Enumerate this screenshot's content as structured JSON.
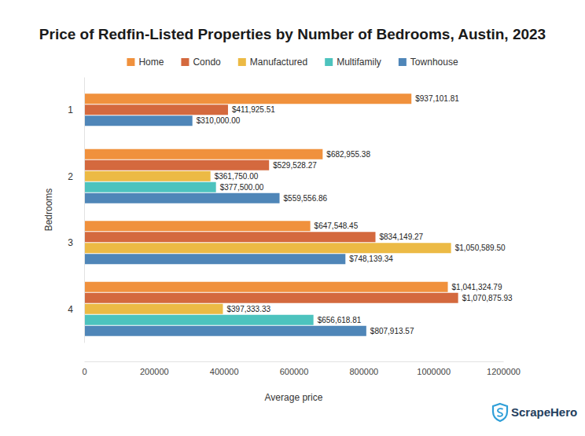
{
  "chart_data": {
    "type": "bar",
    "title": "Price of Redfin-Listed Properties by Number of Bedrooms, Austin, 2023",
    "x_label": "Average price",
    "y_label": "Bedrooms",
    "source": "ScrapeHero",
    "orientation": "horizontal",
    "legend": "top",
    "data_labels": true,
    "categories": [
      "1",
      "2",
      "3",
      "4"
    ],
    "xlim": [
      0,
      1200000
    ],
    "xticks": [
      0,
      200000,
      400000,
      600000,
      800000,
      1000000,
      1200000
    ],
    "series": [
      {
        "name": "Home",
        "color": "#f0913d",
        "values": [
          937101.81,
          682955.38,
          647548.45,
          1041324.79
        ],
        "value_labels": [
          "$937,101.81",
          "$682,955.38",
          "$647,548.45",
          "$1,041,324.79"
        ]
      },
      {
        "name": "Condo",
        "color": "#d4693e",
        "values": [
          411925.51,
          529528.27,
          834149.27,
          1070875.93
        ],
        "value_labels": [
          "$411,925.51",
          "$529,528.27",
          "$834,149.27",
          "$1,070,875.93"
        ]
      },
      {
        "name": "Manufactured",
        "color": "#ecba45",
        "values": [
          null,
          361750.0,
          1050589.5,
          397333.33
        ],
        "value_labels": [
          null,
          "$361,750.00",
          "$1,050,589.50",
          "$397,333.33"
        ]
      },
      {
        "name": "Multifamily",
        "color": "#4dc3be",
        "values": [
          null,
          377500.0,
          null,
          656618.81
        ],
        "value_labels": [
          null,
          "$377,500.00",
          null,
          "$656,618.81"
        ]
      },
      {
        "name": "Townhouse",
        "color": "#4f86b8",
        "values": [
          310000.0,
          559556.86,
          748139.34,
          807913.57
        ],
        "value_labels": [
          "$310,000.00",
          "$559,556.86",
          "$748,139.34",
          "$807,913.57"
        ]
      }
    ]
  }
}
